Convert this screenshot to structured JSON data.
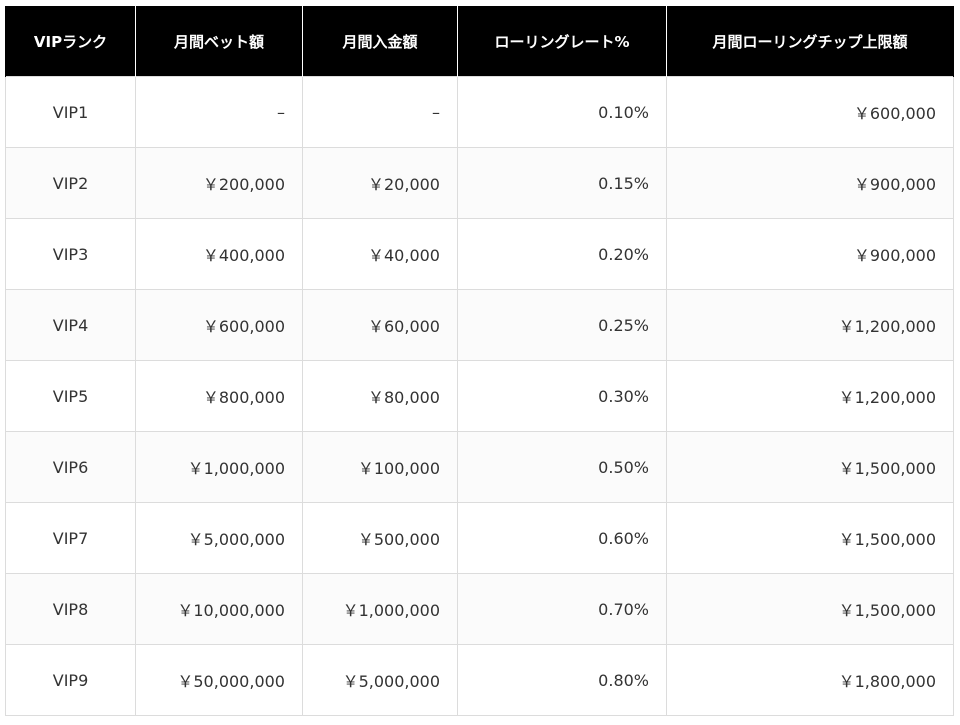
{
  "table": {
    "headers": [
      "VIPランク",
      "月間ベット額",
      "月間入金額",
      "ローリングレート%",
      "月間ローリングチップ上限額"
    ],
    "rows": [
      [
        "VIP1",
        "–",
        "–",
        "0.10%",
        "￥600,000"
      ],
      [
        "VIP2",
        "￥200,000",
        "￥20,000",
        "0.15%",
        "￥900,000"
      ],
      [
        "VIP3",
        "￥400,000",
        "￥40,000",
        "0.20%",
        "￥900,000"
      ],
      [
        "VIP4",
        "￥600,000",
        "￥60,000",
        "0.25%",
        "￥1,200,000"
      ],
      [
        "VIP5",
        "￥800,000",
        "￥80,000",
        "0.30%",
        "￥1,200,000"
      ],
      [
        "VIP6",
        "￥1,000,000",
        "￥100,000",
        "0.50%",
        "￥1,500,000"
      ],
      [
        "VIP7",
        "￥5,000,000",
        "￥500,000",
        "0.60%",
        "￥1,500,000"
      ],
      [
        "VIP8",
        "￥10,000,000",
        "￥1,000,000",
        "0.70%",
        "￥1,500,000"
      ],
      [
        "VIP9",
        "￥50,000,000",
        "￥5,000,000",
        "0.80%",
        "￥1,800,000"
      ]
    ]
  },
  "colors": {
    "header_background": "#000000",
    "header_text": "#ffffff",
    "body_text": "#333333",
    "border": "#dcdcdc"
  }
}
